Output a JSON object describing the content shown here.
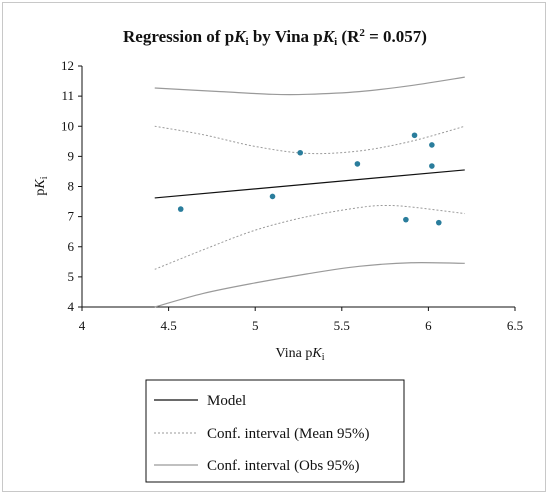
{
  "chart_data": {
    "type": "scatter",
    "title": {
      "prefix": "Regression of p",
      "k1": "K",
      "s1": "i",
      "mid": " by Vina p",
      "k2": "K",
      "s2": "i",
      "suffix": " (R",
      "sup": "2",
      "tail": " = 0.057)"
    },
    "xlabel": {
      "prefix": "Vina p",
      "k": "K",
      "s": "i"
    },
    "ylabel": {
      "prefix": "p",
      "k": "K",
      "s": "i"
    },
    "xlim": [
      4,
      6.5
    ],
    "ylim": [
      4,
      12
    ],
    "x_ticks": [
      "4",
      "4.5",
      "5",
      "5.5",
      "6",
      "6.5"
    ],
    "y_ticks": [
      "4",
      "5",
      "6",
      "7",
      "8",
      "9",
      "10",
      "11",
      "12"
    ],
    "points": [
      {
        "x": 4.57,
        "y": 7.25
      },
      {
        "x": 5.1,
        "y": 7.67
      },
      {
        "x": 5.26,
        "y": 9.12
      },
      {
        "x": 5.59,
        "y": 8.75
      },
      {
        "x": 5.87,
        "y": 6.9
      },
      {
        "x": 5.92,
        "y": 9.7
      },
      {
        "x": 6.02,
        "y": 9.38
      },
      {
        "x": 6.02,
        "y": 8.68
      },
      {
        "x": 6.06,
        "y": 6.8
      }
    ],
    "model": {
      "x": [
        4.42,
        6.21
      ],
      "y": [
        7.62,
        8.55
      ]
    },
    "ci_mean_upper": {
      "x": [
        4.42,
        4.7,
        5.0,
        5.3,
        5.6,
        5.9,
        6.21
      ],
      "y": [
        10.0,
        9.72,
        9.33,
        9.1,
        9.18,
        9.5,
        10.0
      ]
    },
    "ci_mean_lower": {
      "x": [
        4.42,
        4.7,
        5.0,
        5.3,
        5.6,
        5.75,
        5.9,
        6.21
      ],
      "y": [
        5.25,
        5.9,
        6.55,
        7.0,
        7.3,
        7.37,
        7.32,
        7.1
      ]
    },
    "ci_obs_upper": {
      "x": [
        4.42,
        4.8,
        5.1,
        5.3,
        5.6,
        5.9,
        6.21
      ],
      "y": [
        11.27,
        11.15,
        11.06,
        11.06,
        11.15,
        11.35,
        11.63
      ]
    },
    "ci_obs_lower": {
      "x": [
        4.42,
        4.7,
        5.0,
        5.3,
        5.6,
        5.9,
        6.21
      ],
      "y": [
        4.0,
        4.45,
        4.8,
        5.1,
        5.35,
        5.47,
        5.45
      ]
    },
    "legend": [
      "Model",
      "Conf. interval (Mean 95%)",
      "Conf. interval (Obs 95%)"
    ],
    "legend_position": "bottom",
    "grid": false,
    "colors": {
      "points": "#2a7d9c",
      "model": "#111111",
      "ci_mean": "#9a9a9a",
      "ci_obs": "#9a9a9a",
      "axis": "#111111"
    }
  }
}
